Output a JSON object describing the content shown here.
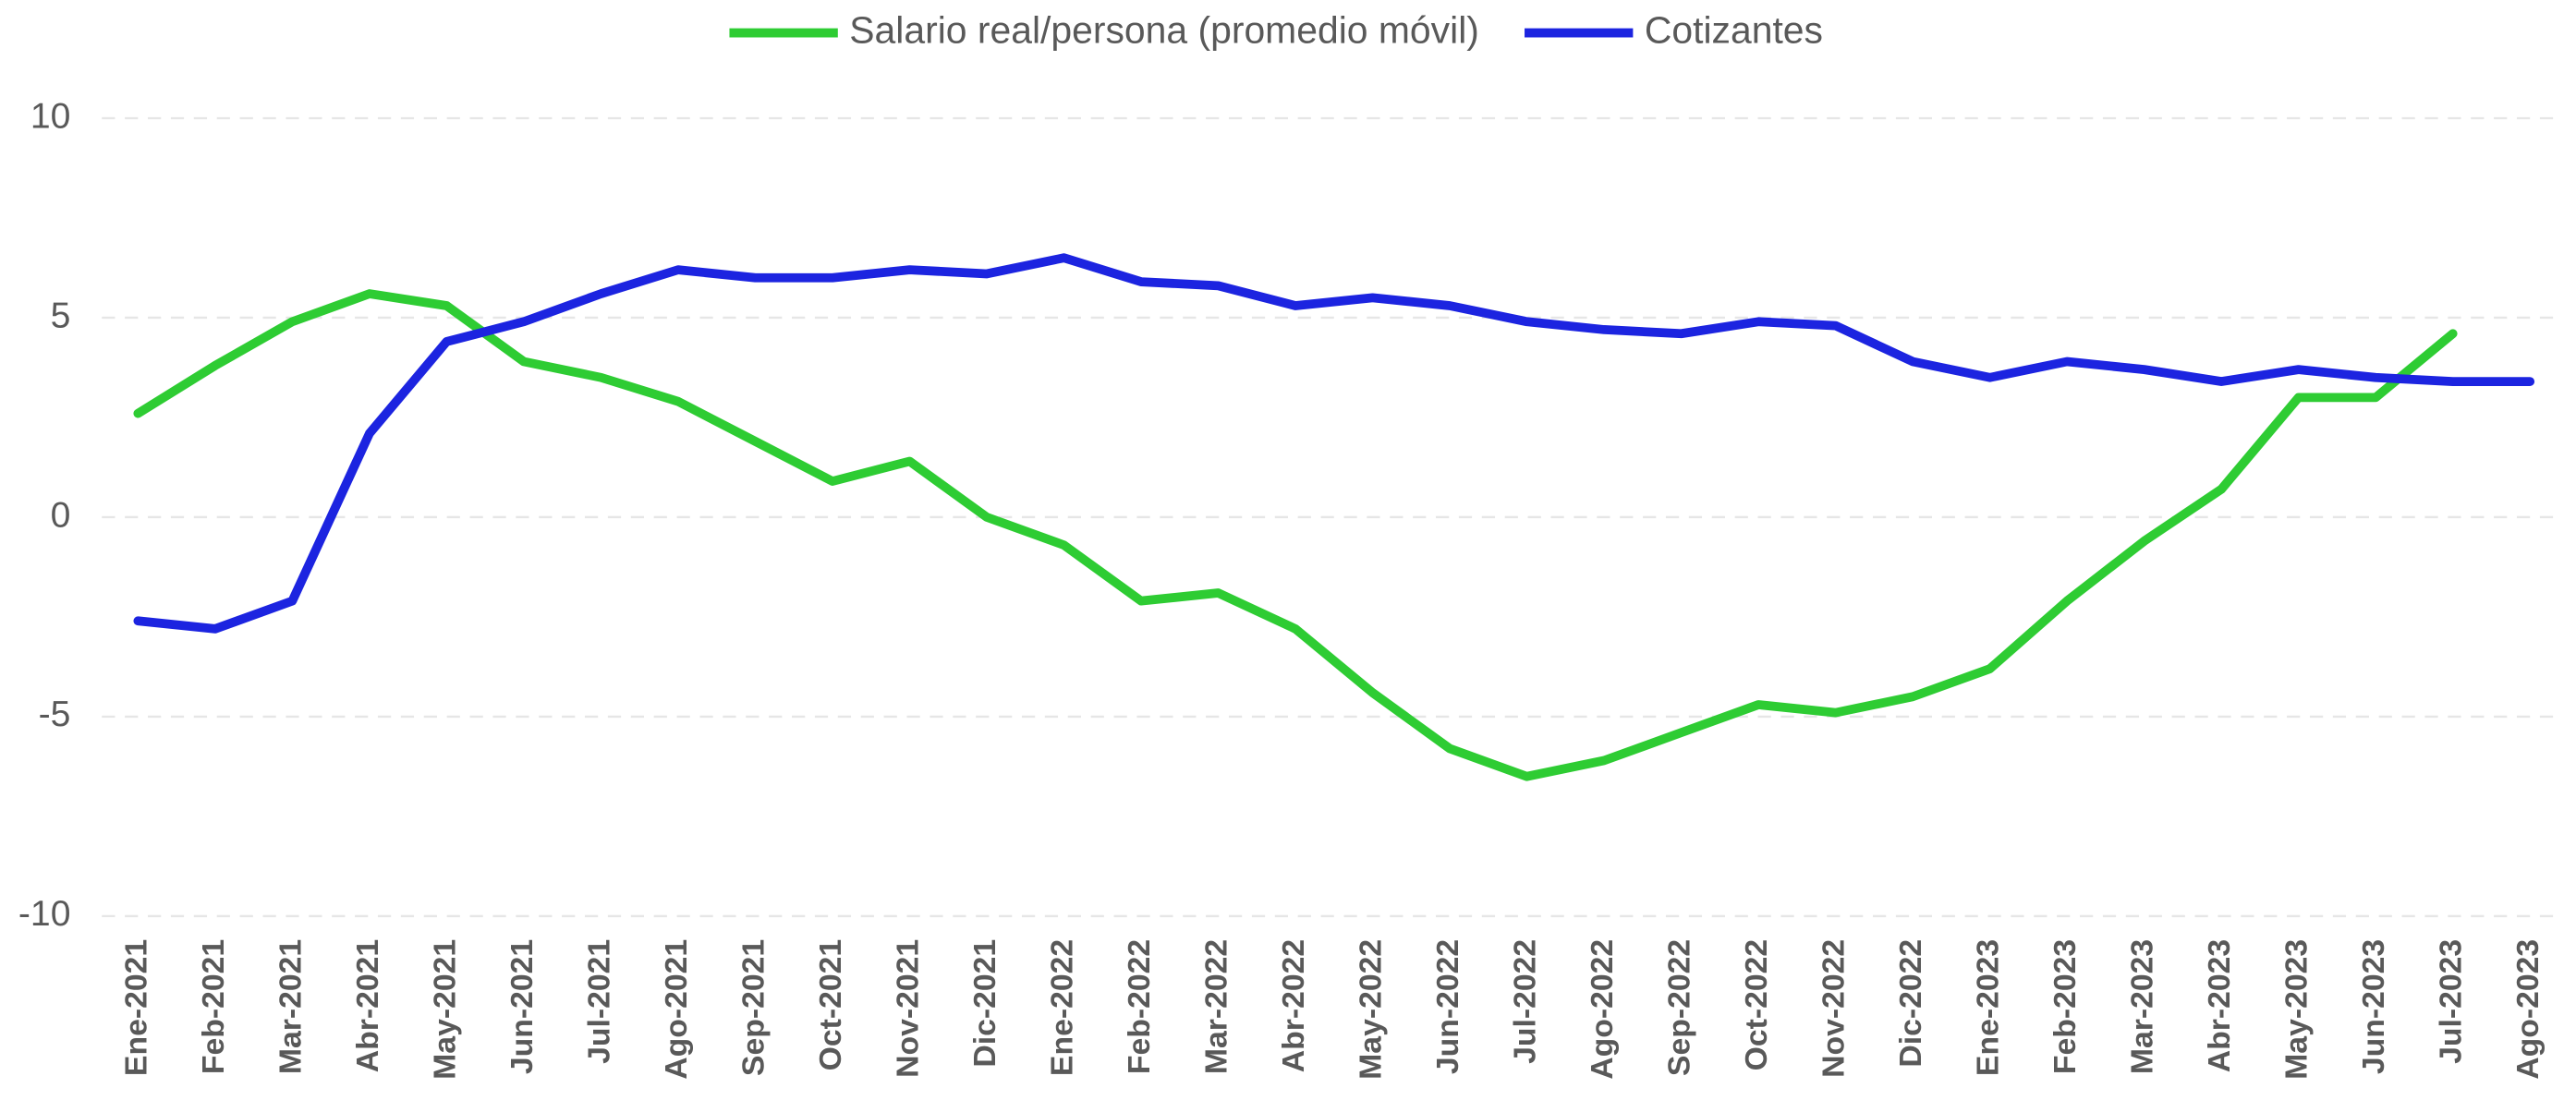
{
  "chart_data": {
    "type": "line",
    "categories": [
      "Ene-2021",
      "Feb-2021",
      "Mar-2021",
      "Abr-2021",
      "May-2021",
      "Jun-2021",
      "Jul-2021",
      "Ago-2021",
      "Sep-2021",
      "Oct-2021",
      "Nov-2021",
      "Dic-2021",
      "Ene-2022",
      "Feb-2022",
      "Mar-2022",
      "Abr-2022",
      "May-2022",
      "Jun-2022",
      "Jul-2022",
      "Ago-2022",
      "Sep-2022",
      "Oct-2022",
      "Nov-2022",
      "Dic-2022",
      "Ene-2023",
      "Feb-2023",
      "Mar-2023",
      "Abr-2023",
      "May-2023",
      "Jun-2023",
      "Jul-2023",
      "Ago-2023"
    ],
    "series": [
      {
        "name": "Salario real/persona (promedio móvil)",
        "color": "#2ecc33",
        "values": [
          2.6,
          3.8,
          4.9,
          5.6,
          5.3,
          3.9,
          3.5,
          2.9,
          1.9,
          0.9,
          1.4,
          0.0,
          -0.7,
          -2.1,
          -1.9,
          -2.8,
          -4.4,
          -5.8,
          -6.5,
          -6.1,
          -5.4,
          -4.7,
          -4.9,
          -4.5,
          -3.8,
          -2.1,
          -0.6,
          0.7,
          3.0,
          3.0,
          4.6,
          null
        ]
      },
      {
        "name": "Cotizantes",
        "color": "#1c24e0",
        "values": [
          -2.6,
          -2.8,
          -2.1,
          2.1,
          4.4,
          4.9,
          5.6,
          6.2,
          6.0,
          6.0,
          6.2,
          6.1,
          6.5,
          5.9,
          5.8,
          5.3,
          5.5,
          5.3,
          4.9,
          4.7,
          4.6,
          4.9,
          4.8,
          3.9,
          3.5,
          3.9,
          3.7,
          3.4,
          3.7,
          3.5,
          3.4,
          3.4
        ]
      }
    ],
    "ylim": [
      -10,
      10
    ],
    "yticks": [
      -10,
      -5,
      0,
      5,
      10
    ],
    "grid": true,
    "legend": "top"
  }
}
